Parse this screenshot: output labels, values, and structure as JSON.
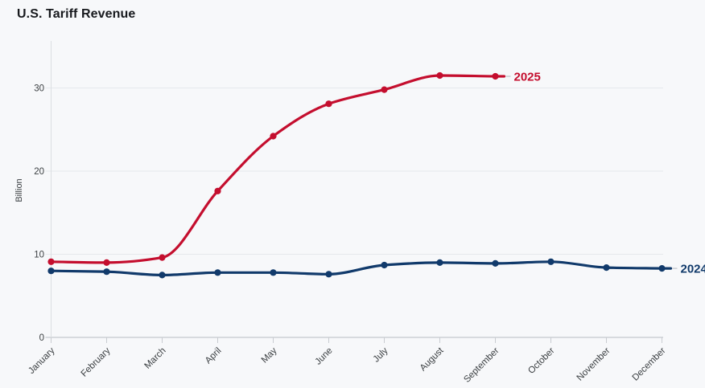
{
  "chart": {
    "title": "U.S. Tariff Revenue"
  },
  "chart_data": {
    "type": "line",
    "title": "U.S. Tariff Revenue",
    "xlabel": "",
    "ylabel": "Billion",
    "categories": [
      "January",
      "February",
      "March",
      "April",
      "May",
      "June",
      "July",
      "August",
      "September",
      "October",
      "November",
      "December"
    ],
    "y_ticks": [
      0,
      10,
      20,
      30
    ],
    "ylim": [
      0,
      35.7
    ],
    "grid": "horizontal",
    "legend_position": "end-of-line-labels",
    "curve": "smooth-monotone",
    "series": [
      {
        "name": "2025",
        "color": "#c40e2e",
        "values": [
          9.1,
          9.0,
          9.6,
          17.6,
          24.2,
          28.1,
          29.8,
          31.5,
          31.4
        ]
      },
      {
        "name": "2024",
        "color": "#113a6b",
        "values": [
          8.0,
          7.9,
          7.5,
          7.8,
          7.8,
          7.6,
          8.7,
          9.0,
          8.9,
          9.1,
          8.4,
          8.3
        ]
      }
    ],
    "colors": {
      "background": "#f7f8fa",
      "gridline": "#e6e8ec",
      "zero_axis_line": "#c4c8ce",
      "y_axis_line": "#dcdfe3",
      "tick_mark": "#c9ccd1",
      "tick_text": "#3c4043",
      "leader_dash": "#c9ccd1",
      "title_text": "#17191d"
    }
  }
}
